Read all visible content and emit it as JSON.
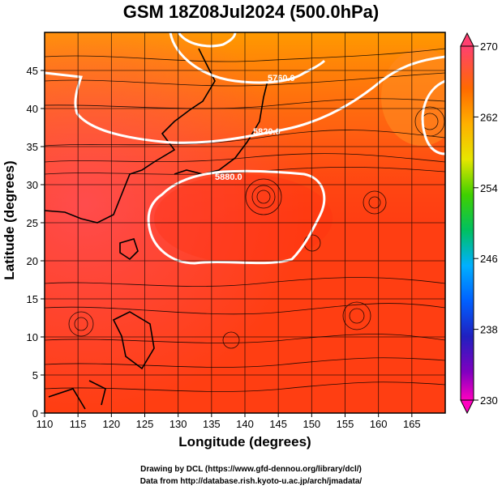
{
  "title": "GSM 18Z08Jul2024 (500.0hPa)",
  "axes": {
    "xlabel": "Longitude (degrees)",
    "ylabel": "Latitude  (degrees)",
    "x_ticks": [
      "110",
      "115",
      "120",
      "125",
      "130",
      "135",
      "140",
      "145",
      "150",
      "155",
      "160",
      "165"
    ],
    "y_ticks": [
      "0",
      "5",
      "10",
      "15",
      "20",
      "25",
      "30",
      "35",
      "40",
      "45"
    ],
    "xlim": [
      110,
      170
    ],
    "ylim": [
      0,
      50
    ]
  },
  "colorbar": {
    "ticks": [
      "270",
      "262",
      "254",
      "246",
      "238",
      "230"
    ],
    "range": [
      230,
      270
    ]
  },
  "contours": [
    {
      "label": "5760.0"
    },
    {
      "label": "5820.0"
    },
    {
      "label": "5880.0"
    }
  ],
  "credits": {
    "line1": "Drawing by DCL (https://www.gfd-dennou.org/library/dcl/)",
    "line2": "Data from http://database.rish.kyoto-u.ac.jp/arch/jmadata/"
  },
  "colors": {
    "field_warm": "#ff3a10",
    "field_hot": "#ff4a60",
    "field_mid": "#ff7a10",
    "contour": "#ffffff",
    "streamline": "#000000",
    "coast": "#000000"
  }
}
